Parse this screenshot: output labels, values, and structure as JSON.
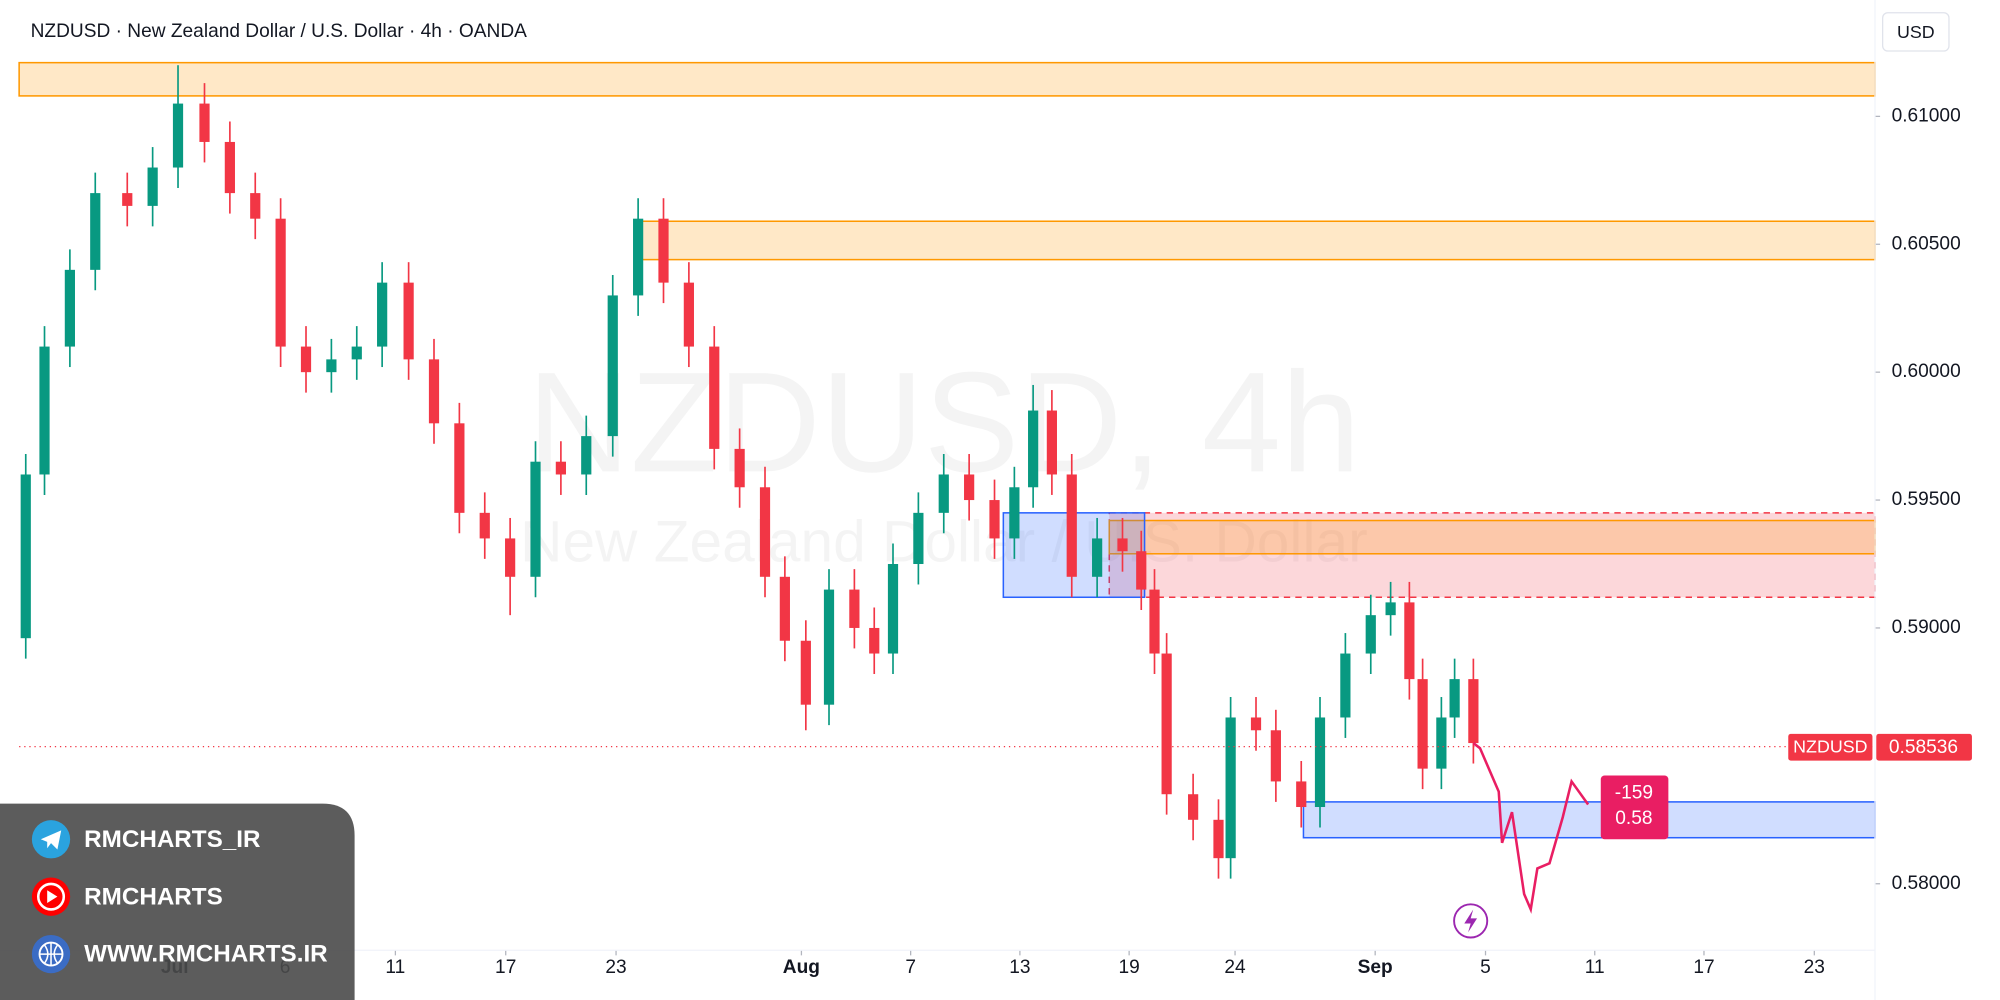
{
  "chart_data": {
    "type": "candlestick",
    "title": "NZDUSD · New Zealand Dollar / U.S. Dollar · 4h · OANDA",
    "currency": "USD",
    "watermark": {
      "symbol": "NZDUSD, 4h",
      "description": "New Zealand Dollar / U.S. Dollar"
    },
    "up_color": "#089981",
    "down_color": "#f23645",
    "xlim": [
      -1.41,
      15.41
    ],
    "ylim": [
      0.5774,
      0.6143
    ],
    "xticks": [
      {
        "value": 0,
        "label": "Jul"
      },
      {
        "value": 1,
        "label": "6"
      },
      {
        "value": 2,
        "label": "11"
      },
      {
        "value": 3,
        "label": "17"
      },
      {
        "value": 4,
        "label": "23"
      },
      {
        "value": 5.68,
        "label": "Aug"
      },
      {
        "value": 6.67,
        "label": "7"
      },
      {
        "value": 7.66,
        "label": "13"
      },
      {
        "value": 8.65,
        "label": "19"
      },
      {
        "value": 9.61,
        "label": "24"
      },
      {
        "value": 10.88,
        "label": "Sep"
      },
      {
        "value": 11.88,
        "label": "5"
      },
      {
        "value": 12.87,
        "label": "11"
      },
      {
        "value": 13.86,
        "label": "17"
      },
      {
        "value": 14.86,
        "label": "23"
      }
    ],
    "yticks": [
      {
        "value": 0.61,
        "label": "0.61000"
      },
      {
        "value": 0.605,
        "label": "0.60500"
      },
      {
        "value": 0.6,
        "label": "0.60000"
      },
      {
        "value": 0.595,
        "label": "0.59500"
      },
      {
        "value": 0.59,
        "label": "0.59000"
      },
      {
        "value": 0.58,
        "label": "0.58000"
      }
    ],
    "x": [
      -1.35,
      -1.18,
      -0.95,
      -0.72,
      -0.43,
      -0.2,
      0.03,
      0.27,
      0.5,
      0.73,
      0.96,
      1.19,
      1.42,
      1.65,
      1.88,
      2.12,
      2.35,
      2.58,
      2.81,
      3.04,
      3.27,
      3.5,
      3.73,
      3.97,
      4.2,
      4.43,
      4.66,
      4.89,
      5.12,
      5.35,
      5.53,
      5.72,
      5.93,
      6.16,
      6.34,
      6.51,
      6.74,
      6.97,
      7.2,
      7.43,
      7.61,
      7.78,
      7.95,
      8.13,
      8.36,
      8.59,
      8.76,
      8.88,
      8.99,
      9.23,
      9.46,
      9.57,
      9.8,
      9.98,
      10.21,
      10.38,
      10.61,
      10.84,
      11.02,
      11.19,
      11.31,
      11.48,
      11.6,
      11.77
    ],
    "open": [
      0.5896,
      0.596,
      0.601,
      0.604,
      0.607,
      0.6065,
      0.608,
      0.6105,
      0.609,
      0.607,
      0.606,
      0.601,
      0.6,
      0.6005,
      0.601,
      0.6035,
      0.6005,
      0.598,
      0.5945,
      0.5935,
      0.592,
      0.5965,
      0.596,
      0.5975,
      0.603,
      0.606,
      0.6035,
      0.601,
      0.597,
      0.5955,
      0.592,
      0.5895,
      0.587,
      0.5915,
      0.59,
      0.589,
      0.5925,
      0.5945,
      0.596,
      0.595,
      0.5935,
      0.5955,
      0.5985,
      0.596,
      0.592,
      0.5935,
      0.593,
      0.5915,
      0.589,
      0.5835,
      0.5825,
      0.581,
      0.5865,
      0.586,
      0.584,
      0.583,
      0.5865,
      0.589,
      0.5905,
      0.591,
      0.588,
      0.5845,
      0.5865,
      0.588
    ],
    "high": [
      0.5968,
      0.6018,
      0.6048,
      0.6078,
      0.6078,
      0.6088,
      0.612,
      0.6113,
      0.6098,
      0.6078,
      0.6068,
      0.6018,
      0.6013,
      0.6018,
      0.6043,
      0.6043,
      0.6013,
      0.5988,
      0.5953,
      0.5943,
      0.5973,
      0.5973,
      0.5983,
      0.6038,
      0.6068,
      0.6068,
      0.6043,
      0.6018,
      0.5978,
      0.5963,
      0.5928,
      0.5903,
      0.5923,
      0.5923,
      0.5908,
      0.5933,
      0.5953,
      0.5968,
      0.5968,
      0.5958,
      0.5963,
      0.5995,
      0.5993,
      0.5968,
      0.5943,
      0.5943,
      0.5938,
      0.5923,
      0.5898,
      0.5843,
      0.5833,
      0.5873,
      0.5873,
      0.5868,
      0.5848,
      0.5873,
      0.5898,
      0.5913,
      0.5918,
      0.5918,
      0.5888,
      0.5873,
      0.5888,
      0.5888
    ],
    "low": [
      0.5888,
      0.5952,
      0.6002,
      0.6032,
      0.6057,
      0.6057,
      0.6072,
      0.6082,
      0.6062,
      0.6052,
      0.6002,
      0.5992,
      0.5992,
      0.5997,
      0.6002,
      0.5997,
      0.5972,
      0.5937,
      0.5927,
      0.5905,
      0.5912,
      0.5952,
      0.5952,
      0.5967,
      0.6022,
      0.6027,
      0.6002,
      0.5962,
      0.5947,
      0.5912,
      0.5887,
      0.586,
      0.5862,
      0.5892,
      0.5882,
      0.5882,
      0.5917,
      0.5937,
      0.5942,
      0.5927,
      0.5927,
      0.5947,
      0.5952,
      0.5912,
      0.5912,
      0.5922,
      0.5907,
      0.5882,
      0.5827,
      0.5817,
      0.5802,
      0.5802,
      0.5852,
      0.5832,
      0.5822,
      0.5822,
      0.5857,
      0.5882,
      0.5897,
      0.5872,
      0.5837,
      0.5837,
      0.5857,
      0.5847
    ],
    "close": [
      0.596,
      0.601,
      0.604,
      0.607,
      0.6065,
      0.608,
      0.6105,
      0.609,
      0.607,
      0.606,
      0.601,
      0.6,
      0.6005,
      0.601,
      0.6035,
      0.6005,
      0.598,
      0.5945,
      0.5935,
      0.592,
      0.5965,
      0.596,
      0.5975,
      0.603,
      0.606,
      0.6035,
      0.601,
      0.597,
      0.5955,
      0.592,
      0.5895,
      0.587,
      0.5915,
      0.59,
      0.589,
      0.5925,
      0.5945,
      0.596,
      0.595,
      0.5935,
      0.5955,
      0.5985,
      0.596,
      0.592,
      0.5935,
      0.593,
      0.5915,
      0.589,
      0.5835,
      0.5825,
      0.581,
      0.5865,
      0.586,
      0.584,
      0.583,
      0.5865,
      0.589,
      0.5905,
      0.591,
      0.588,
      0.5845,
      0.5865,
      0.588,
      0.5855
    ],
    "zones": [
      {
        "from": -1.41,
        "to": 15.41,
        "low": 0.6108,
        "high": 0.6121,
        "color": "#ff9800"
      },
      {
        "from": 4.2,
        "to": 15.41,
        "low": 0.6044,
        "high": 0.6059,
        "color": "#ff9800"
      },
      {
        "from": 8.47,
        "to": 15.41,
        "low": 0.5912,
        "high": 0.5945,
        "color": "#f23645"
      },
      {
        "from": 8.47,
        "to": 15.41,
        "low": 0.5929,
        "high": 0.5942,
        "color": "#ff9800"
      },
      {
        "from": 7.51,
        "to": 8.79,
        "low": 0.5912,
        "high": 0.5945,
        "color": "#2962ff"
      },
      {
        "from": 10.23,
        "to": 15.41,
        "low": 0.5818,
        "high": 0.5832,
        "color": "#2962ff"
      }
    ],
    "last_price": {
      "label": "NZDUSD",
      "value": 0.58536,
      "color": "#f23645"
    },
    "projection": {
      "color": "#e91e63",
      "x": [
        11.77,
        11.83,
        12.0,
        12.03,
        12.12,
        12.23,
        12.29,
        12.35,
        12.46,
        12.58,
        12.66,
        12.81
      ],
      "values": [
        0.5855,
        0.5853,
        0.5836,
        0.5816,
        0.5828,
        0.5796,
        0.579,
        0.5806,
        0.5808,
        0.5826,
        0.584,
        0.5831
      ],
      "label_lines": [
        -159,
        0.58
      ]
    }
  },
  "social": [
    "RMCHARTS_IR",
    "RMCHARTS",
    "WWW.RMCHARTS.IR"
  ]
}
